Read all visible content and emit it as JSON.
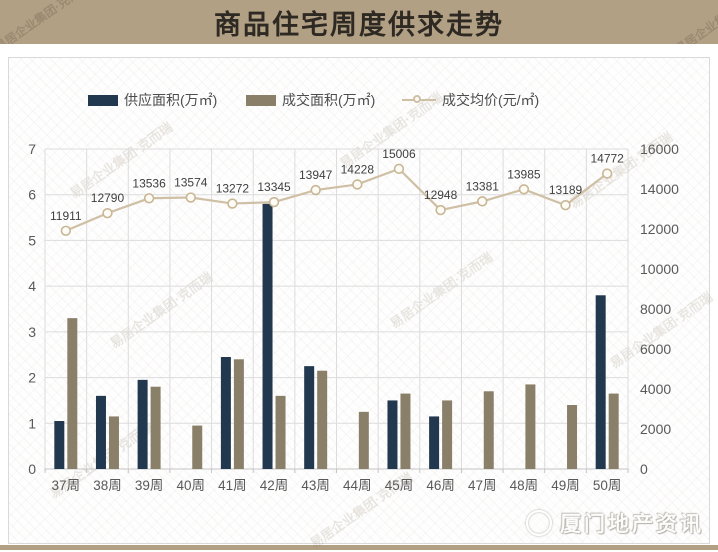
{
  "title": "商品住宅周度供求走势",
  "legend": [
    {
      "label": "供应面积(万㎡)",
      "type": "bar",
      "color": "#22384f"
    },
    {
      "label": "成交面积(万㎡)",
      "type": "bar",
      "color": "#8a8069"
    },
    {
      "label": "成交均价(元/㎡)",
      "type": "line",
      "color": "#cfc0a5"
    }
  ],
  "chart_data": {
    "type": "bar",
    "title": "商品住宅周度供求走势",
    "categories": [
      "37周",
      "38周",
      "39周",
      "40周",
      "41周",
      "42周",
      "43周",
      "44周",
      "45周",
      "46周",
      "47周",
      "48周",
      "49周",
      "50周"
    ],
    "series": [
      {
        "name": "供应面积(万㎡)",
        "type": "bar",
        "axis": "left",
        "color": "#22384f",
        "values": [
          1.05,
          1.6,
          1.95,
          0,
          2.45,
          5.8,
          2.25,
          0,
          1.5,
          1.15,
          0,
          0,
          0,
          3.8
        ]
      },
      {
        "name": "成交面积(万㎡)",
        "type": "bar",
        "axis": "left",
        "color": "#8a8069",
        "values": [
          3.3,
          1.15,
          1.8,
          0.95,
          2.4,
          1.6,
          2.15,
          1.25,
          1.65,
          1.5,
          1.7,
          1.85,
          1.4,
          1.65
        ]
      },
      {
        "name": "成交均价(元/㎡)",
        "type": "line",
        "axis": "right",
        "color": "#cfc0a5",
        "marker_fill": "#fdfbf6",
        "marker_stroke": "#c8b694",
        "data_labels": true,
        "values": [
          11911,
          12790,
          13536,
          13574,
          13272,
          13345,
          13947,
          14228,
          15006,
          12948,
          13381,
          13985,
          13189,
          14772
        ]
      }
    ],
    "left_axis": {
      "min": 0,
      "max": 7,
      "step": 1,
      "ticks": [
        0,
        1,
        2,
        3,
        4,
        5,
        6,
        7
      ]
    },
    "right_axis": {
      "min": 0,
      "max": 16000,
      "step": 2000,
      "ticks": [
        0,
        2000,
        4000,
        6000,
        8000,
        10000,
        12000,
        14000,
        16000
      ]
    },
    "grid": "horizontal and vertical, light gray",
    "legend_position": "top",
    "colors": {
      "grid": "#dcdcdc",
      "axis_text": "#595959",
      "data_label_text": "#3f3f3f"
    }
  },
  "watermarks": {
    "diagonal_text": "易居企业集团·克而瑞",
    "footer_text": "厦门地产资讯"
  }
}
